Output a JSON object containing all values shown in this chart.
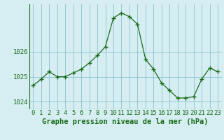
{
  "x": [
    0,
    1,
    2,
    3,
    4,
    5,
    6,
    7,
    8,
    9,
    10,
    11,
    12,
    13,
    14,
    15,
    16,
    17,
    18,
    19,
    20,
    21,
    22,
    23
  ],
  "y": [
    1024.65,
    1024.9,
    1025.2,
    1025.0,
    1025.0,
    1025.15,
    1025.3,
    1025.55,
    1025.85,
    1026.2,
    1027.35,
    1027.55,
    1027.4,
    1027.1,
    1025.7,
    1025.3,
    1024.75,
    1024.45,
    1024.15,
    1024.15,
    1024.2,
    1024.9,
    1025.35,
    1025.2
  ],
  "line_color": "#1a6b1a",
  "marker": "+",
  "marker_size": 4,
  "background_color": "#d6eef2",
  "grid_color": "#7ab8c8",
  "ylabel_ticks": [
    1024,
    1025,
    1026
  ],
  "xlabel": "Graphe pression niveau de la mer (hPa)",
  "xlabel_fontsize": 7.5,
  "ylim": [
    1023.7,
    1027.9
  ],
  "xlim": [
    -0.5,
    23.5
  ],
  "tick_fontsize": 6.5,
  "tick_color": "#1a6b1a"
}
